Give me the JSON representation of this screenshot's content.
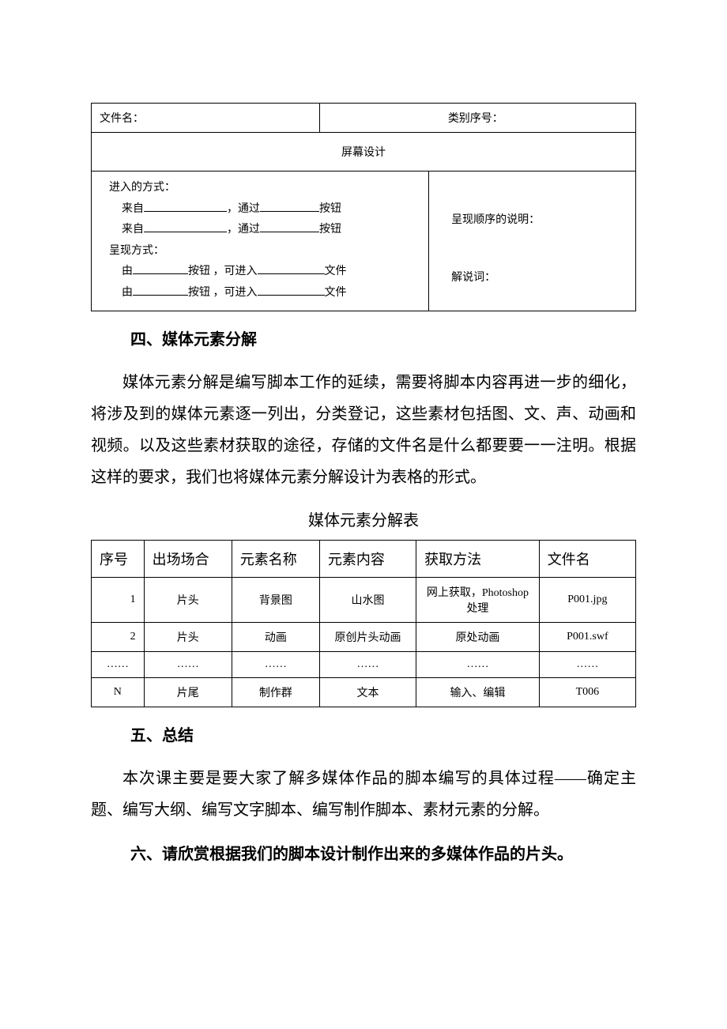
{
  "form": {
    "filename_label": "文件名：",
    "category_label": "类别序号：",
    "screen_design": "屏幕设计",
    "enter_method": "进入的方式：",
    "from_label": "来自",
    "through_label": "，通过",
    "button_label": "按钮",
    "present_method": "呈现方式：",
    "by_label": "由",
    "button_enter": "按钮 ，可进入",
    "file_label": "文件",
    "order_explain": "呈现顺序的说明：",
    "narration": "解说词："
  },
  "section4": {
    "heading": "四、媒体元素分解",
    "para": "媒体元素分解是编写脚本工作的延续，需要将脚本内容再进一步的细化，将涉及到的媒体元素逐一列出，分类登记，这些素材包括图、文、声、动画和视频。以及这些素材获取的途径，存储的文件名是什么都要要一一注明。根据这样的要求，我们也将媒体元素分解设计为表格的形式。"
  },
  "media_table": {
    "title": "媒体元素分解表",
    "headers": [
      "序号",
      "出场场合",
      "元素名称",
      "元素内容",
      "获取方法",
      "文件名"
    ],
    "rows": [
      [
        "1",
        "片头",
        "背景图",
        "山水图",
        "网上获取，Photoshop 处理",
        "P001.jpg"
      ],
      [
        "2",
        "片头",
        "动画",
        "原创片头动画",
        "原处动画",
        "P001.swf"
      ],
      [
        "……",
        "……",
        "……",
        "……",
        "……",
        "……"
      ],
      [
        "N",
        "片尾",
        "制作群",
        "文本",
        "输入、编辑",
        "T006"
      ]
    ]
  },
  "section5": {
    "heading": "五、总结",
    "para": "本次课主要是要大家了解多媒体作品的脚本编写的具体过程——确定主题、编写大纲、编写文字脚本、编写制作脚本、素材元素的分解。"
  },
  "section6": {
    "heading": "六、请欣赏根据我们的脚本设计制作出来的多媒体作品的片头。"
  }
}
